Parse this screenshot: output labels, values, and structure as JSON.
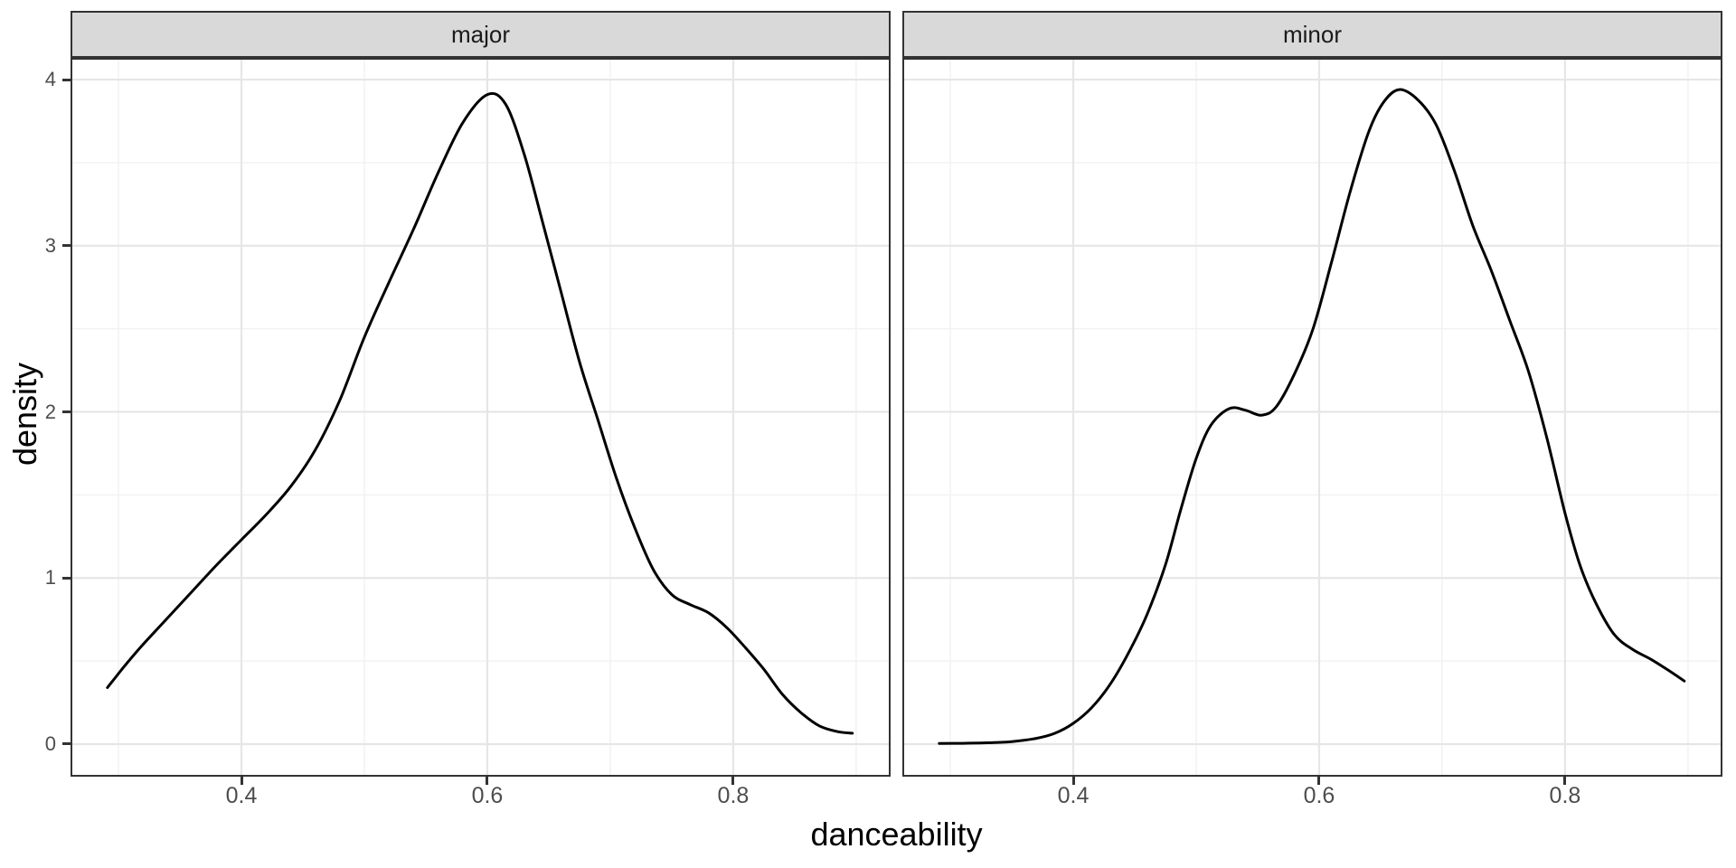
{
  "figure": {
    "title_x": "danceability",
    "title_y": "density",
    "background": "#ffffff"
  },
  "style": {
    "strip_fill": "#d9d9d9",
    "strip_border": "#333333",
    "panel_border": "#333333",
    "grid_major": "#e6e6e6",
    "grid_minor": "#f2f2f2",
    "tick_color": "#333333",
    "axis_text_color": "#4d4d4d",
    "title_color": "#000000",
    "curve_color": "#000000"
  },
  "chart_data": {
    "type": "line",
    "subtype": "faceted-density",
    "title": "",
    "xlabel": "danceability",
    "ylabel": "density",
    "legend": "none",
    "grid": true,
    "xlim": [
      0.261,
      0.928
    ],
    "ylim": [
      -0.196,
      4.131
    ],
    "x_ticks": [
      0.4,
      0.6,
      0.8
    ],
    "x_tick_labels": [
      "0.4",
      "0.6",
      "0.8"
    ],
    "x_minor_ticks": [
      0.3,
      0.5,
      0.7,
      0.9
    ],
    "y_ticks": [
      0,
      1,
      2,
      3,
      4
    ],
    "y_tick_labels": [
      "0",
      "1",
      "2",
      "3",
      "4"
    ],
    "y_minor_ticks": [
      0.5,
      1.5,
      2.5,
      3.5
    ],
    "facets": [
      {
        "name": "major",
        "points": [
          [
            0.291,
            0.34
          ],
          [
            0.305,
            0.47
          ],
          [
            0.32,
            0.6
          ],
          [
            0.34,
            0.76
          ],
          [
            0.36,
            0.92
          ],
          [
            0.38,
            1.08
          ],
          [
            0.4,
            1.23
          ],
          [
            0.42,
            1.38
          ],
          [
            0.44,
            1.55
          ],
          [
            0.46,
            1.77
          ],
          [
            0.48,
            2.07
          ],
          [
            0.5,
            2.45
          ],
          [
            0.52,
            2.78
          ],
          [
            0.54,
            3.1
          ],
          [
            0.56,
            3.44
          ],
          [
            0.58,
            3.74
          ],
          [
            0.6,
            3.91
          ],
          [
            0.615,
            3.85
          ],
          [
            0.63,
            3.55
          ],
          [
            0.645,
            3.14
          ],
          [
            0.66,
            2.72
          ],
          [
            0.675,
            2.3
          ],
          [
            0.69,
            1.95
          ],
          [
            0.705,
            1.6
          ],
          [
            0.72,
            1.3
          ],
          [
            0.735,
            1.05
          ],
          [
            0.75,
            0.9
          ],
          [
            0.765,
            0.84
          ],
          [
            0.78,
            0.79
          ],
          [
            0.795,
            0.7
          ],
          [
            0.81,
            0.58
          ],
          [
            0.825,
            0.45
          ],
          [
            0.84,
            0.3
          ],
          [
            0.855,
            0.19
          ],
          [
            0.87,
            0.11
          ],
          [
            0.885,
            0.075
          ],
          [
            0.897,
            0.065
          ]
        ]
      },
      {
        "name": "minor",
        "points": [
          [
            0.291,
            0.004
          ],
          [
            0.31,
            0.005
          ],
          [
            0.33,
            0.008
          ],
          [
            0.35,
            0.015
          ],
          [
            0.37,
            0.035
          ],
          [
            0.385,
            0.065
          ],
          [
            0.4,
            0.125
          ],
          [
            0.415,
            0.22
          ],
          [
            0.43,
            0.36
          ],
          [
            0.445,
            0.55
          ],
          [
            0.46,
            0.78
          ],
          [
            0.475,
            1.08
          ],
          [
            0.487,
            1.4
          ],
          [
            0.5,
            1.72
          ],
          [
            0.512,
            1.92
          ],
          [
            0.527,
            2.02
          ],
          [
            0.54,
            2.01
          ],
          [
            0.553,
            1.98
          ],
          [
            0.565,
            2.03
          ],
          [
            0.58,
            2.23
          ],
          [
            0.595,
            2.5
          ],
          [
            0.61,
            2.9
          ],
          [
            0.625,
            3.32
          ],
          [
            0.64,
            3.68
          ],
          [
            0.652,
            3.86
          ],
          [
            0.665,
            3.94
          ],
          [
            0.68,
            3.88
          ],
          [
            0.695,
            3.73
          ],
          [
            0.71,
            3.45
          ],
          [
            0.725,
            3.12
          ],
          [
            0.74,
            2.85
          ],
          [
            0.755,
            2.55
          ],
          [
            0.77,
            2.25
          ],
          [
            0.785,
            1.85
          ],
          [
            0.8,
            1.39
          ],
          [
            0.812,
            1.08
          ],
          [
            0.825,
            0.85
          ],
          [
            0.84,
            0.66
          ],
          [
            0.855,
            0.57
          ],
          [
            0.87,
            0.51
          ],
          [
            0.885,
            0.44
          ],
          [
            0.897,
            0.38
          ]
        ]
      }
    ]
  }
}
